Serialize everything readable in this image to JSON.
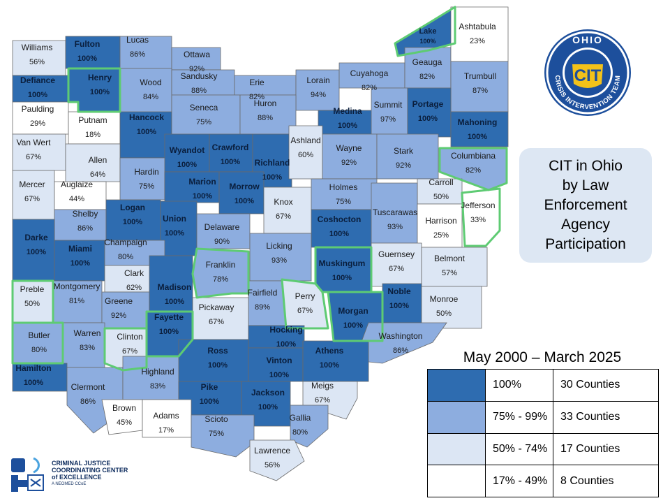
{
  "title": "CIT in Ohio\nby Law\nEnforcement\nAgency\nParticipation",
  "date_range": "May 2000 – March 2025",
  "colors": {
    "c100": "#2e6cb0",
    "c75": "#8daddf",
    "c50": "#dce6f4",
    "c17": "#ffffff",
    "highlight": "#5ecb73",
    "border": "#6a6a6a"
  },
  "legend": [
    {
      "range": "100%",
      "count": "30 Counties",
      "color": "#2e6cb0"
    },
    {
      "range": "75% - 99%",
      "count": "33 Counties",
      "color": "#8daddf"
    },
    {
      "range": "50% - 74%",
      "count": "17 Counties",
      "color": "#dce6f4"
    },
    {
      "range": "17% - 49%",
      "count": "8 Counties",
      "color": "#ffffff"
    }
  ],
  "seal": {
    "top": "OHIO",
    "center": "CIT",
    "ring": "CRISIS INTERVENTION TEAM"
  },
  "logo": {
    "line1": "CRIMINAL JUSTICE",
    "line2": "COORDINATING CENTER",
    "line3": "of EXCELLENCE",
    "line4": "A NEOMED CCoE",
    "icon": "cjcc-logo-icon"
  },
  "counties": [
    {
      "name": "Williams",
      "pct": "56%",
      "tier": "c50"
    },
    {
      "name": "Fulton",
      "pct": "100%",
      "tier": "c100"
    },
    {
      "name": "Lucas",
      "pct": "86%",
      "tier": "c75"
    },
    {
      "name": "Ottawa",
      "pct": "92%",
      "tier": "c75"
    },
    {
      "name": "Defiance",
      "pct": "100%",
      "tier": "c100"
    },
    {
      "name": "Henry",
      "pct": "100%",
      "tier": "c100",
      "hl": true
    },
    {
      "name": "Wood",
      "pct": "84%",
      "tier": "c75"
    },
    {
      "name": "Sandusky",
      "pct": "88%",
      "tier": "c75"
    },
    {
      "name": "Erie",
      "pct": "82%",
      "tier": "c75"
    },
    {
      "name": "Lorain",
      "pct": "94%",
      "tier": "c75"
    },
    {
      "name": "Cuyahoga",
      "pct": "82%",
      "tier": "c75"
    },
    {
      "name": "Lake",
      "pct": "100%",
      "tier": "c100",
      "hl": true
    },
    {
      "name": "Geauga",
      "pct": "82%",
      "tier": "c75"
    },
    {
      "name": "Ashtabula",
      "pct": "23%",
      "tier": "c17"
    },
    {
      "name": "Trumbull",
      "pct": "87%",
      "tier": "c75"
    },
    {
      "name": "Paulding",
      "pct": "29%",
      "tier": "c17"
    },
    {
      "name": "Putnam",
      "pct": "18%",
      "tier": "c17"
    },
    {
      "name": "Hancock",
      "pct": "100%",
      "tier": "c100"
    },
    {
      "name": "Seneca",
      "pct": "75%",
      "tier": "c75"
    },
    {
      "name": "Huron",
      "pct": "88%",
      "tier": "c75"
    },
    {
      "name": "Medina",
      "pct": "100%",
      "tier": "c100"
    },
    {
      "name": "Summit",
      "pct": "97%",
      "tier": "c75"
    },
    {
      "name": "Portage",
      "pct": "100%",
      "tier": "c100"
    },
    {
      "name": "Mahoning",
      "pct": "100%",
      "tier": "c100"
    },
    {
      "name": "Van Wert",
      "pct": "67%",
      "tier": "c50"
    },
    {
      "name": "Allen",
      "pct": "64%",
      "tier": "c50"
    },
    {
      "name": "Wyandot",
      "pct": "100%",
      "tier": "c100"
    },
    {
      "name": "Crawford",
      "pct": "100%",
      "tier": "c100"
    },
    {
      "name": "Richland",
      "pct": "100%",
      "tier": "c100"
    },
    {
      "name": "Ashland",
      "pct": "60%",
      "tier": "c50"
    },
    {
      "name": "Wayne",
      "pct": "92%",
      "tier": "c75"
    },
    {
      "name": "Stark",
      "pct": "92%",
      "tier": "c75"
    },
    {
      "name": "Columbiana",
      "pct": "82%",
      "tier": "c75",
      "hl": true
    },
    {
      "name": "Mercer",
      "pct": "67%",
      "tier": "c50"
    },
    {
      "name": "Auglaize",
      "pct": "44%",
      "tier": "c17"
    },
    {
      "name": "Hardin",
      "pct": "75%",
      "tier": "c75"
    },
    {
      "name": "Marion",
      "pct": "100%",
      "tier": "c100"
    },
    {
      "name": "Morrow",
      "pct": "100%",
      "tier": "c100"
    },
    {
      "name": "Knox",
      "pct": "67%",
      "tier": "c50"
    },
    {
      "name": "Holmes",
      "pct": "75%",
      "tier": "c75"
    },
    {
      "name": "Carroll",
      "pct": "50%",
      "tier": "c50"
    },
    {
      "name": "Jefferson",
      "pct": "33%",
      "tier": "c17",
      "hl": true
    },
    {
      "name": "Shelby",
      "pct": "86%",
      "tier": "c75"
    },
    {
      "name": "Logan",
      "pct": "100%",
      "tier": "c100"
    },
    {
      "name": "Union",
      "pct": "100%",
      "tier": "c100"
    },
    {
      "name": "Delaware",
      "pct": "90%",
      "tier": "c75"
    },
    {
      "name": "Coshocton",
      "pct": "100%",
      "tier": "c100"
    },
    {
      "name": "Tuscarawas",
      "pct": "93%",
      "tier": "c75"
    },
    {
      "name": "Harrison",
      "pct": "25%",
      "tier": "c17"
    },
    {
      "name": "Darke",
      "pct": "100%",
      "tier": "c100"
    },
    {
      "name": "Miami",
      "pct": "100%",
      "tier": "c100"
    },
    {
      "name": "Champaign",
      "pct": "80%",
      "tier": "c75"
    },
    {
      "name": "Licking",
      "pct": "93%",
      "tier": "c75"
    },
    {
      "name": "Muskingum",
      "pct": "100%",
      "tier": "c100",
      "hl": true
    },
    {
      "name": "Guernsey",
      "pct": "67%",
      "tier": "c50"
    },
    {
      "name": "Belmont",
      "pct": "57%",
      "tier": "c50"
    },
    {
      "name": "Franklin",
      "pct": "78%",
      "tier": "c75",
      "hl": true
    },
    {
      "name": "Clark",
      "pct": "62%",
      "tier": "c50"
    },
    {
      "name": "Preble",
      "pct": "50%",
      "tier": "c50",
      "hl": true
    },
    {
      "name": "Montgomery",
      "pct": "81%",
      "tier": "c75"
    },
    {
      "name": "Greene",
      "pct": "92%",
      "tier": "c75"
    },
    {
      "name": "Madison",
      "pct": "100%",
      "tier": "c100"
    },
    {
      "name": "Fairfield",
      "pct": "89%",
      "tier": "c75"
    },
    {
      "name": "Perry",
      "pct": "67%",
      "tier": "c50",
      "hl": true
    },
    {
      "name": "Morgan",
      "pct": "100%",
      "tier": "c100",
      "hl": true
    },
    {
      "name": "Noble",
      "pct": "100%",
      "tier": "c100"
    },
    {
      "name": "Monroe",
      "pct": "50%",
      "tier": "c50"
    },
    {
      "name": "Pickaway",
      "pct": "67%",
      "tier": "c50"
    },
    {
      "name": "Fayette",
      "pct": "100%",
      "tier": "c100",
      "hl": true
    },
    {
      "name": "Butler",
      "pct": "80%",
      "tier": "c75",
      "hl": true
    },
    {
      "name": "Warren",
      "pct": "83%",
      "tier": "c75"
    },
    {
      "name": "Clinton",
      "pct": "67%",
      "tier": "c50",
      "hl": true
    },
    {
      "name": "Hocking",
      "pct": "100%",
      "tier": "c100"
    },
    {
      "name": "Washington",
      "pct": "86%",
      "tier": "c75"
    },
    {
      "name": "Hamilton",
      "pct": "100%",
      "tier": "c100"
    },
    {
      "name": "Ross",
      "pct": "100%",
      "tier": "c100"
    },
    {
      "name": "Vinton",
      "pct": "100%",
      "tier": "c100"
    },
    {
      "name": "Athens",
      "pct": "100%",
      "tier": "c100"
    },
    {
      "name": "Clermont",
      "pct": "86%",
      "tier": "c75"
    },
    {
      "name": "Highland",
      "pct": "83%",
      "tier": "c75"
    },
    {
      "name": "Meigs",
      "pct": "67%",
      "tier": "c50"
    },
    {
      "name": "Pike",
      "pct": "100%",
      "tier": "c100"
    },
    {
      "name": "Jackson",
      "pct": "100%",
      "tier": "c100"
    },
    {
      "name": "Brown",
      "pct": "45%",
      "tier": "c17"
    },
    {
      "name": "Adams",
      "pct": "17%",
      "tier": "c17"
    },
    {
      "name": "Scioto",
      "pct": "75%",
      "tier": "c75"
    },
    {
      "name": "Gallia",
      "pct": "80%",
      "tier": "c75"
    },
    {
      "name": "Lawrence",
      "pct": "56%",
      "tier": "c50"
    }
  ]
}
